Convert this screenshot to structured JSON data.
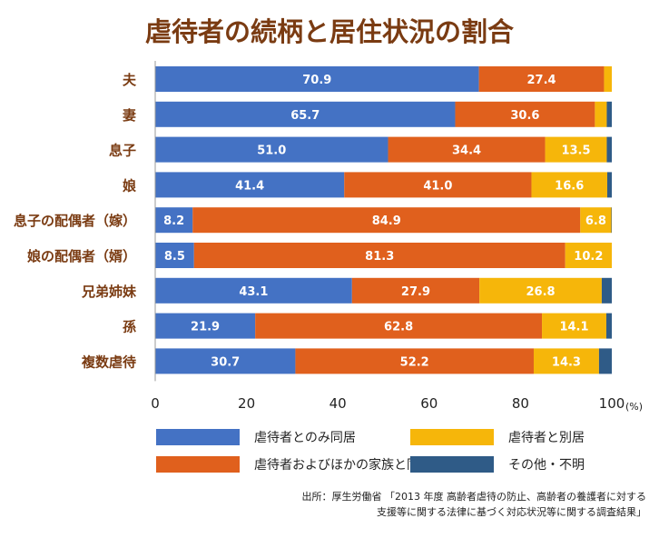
{
  "title": "虐待者の続柄と居住状況の割合",
  "source_lines": [
    "出所：厚生労働省 「2013 年度 高齢者虐待の防止、高齢者の養護者に対する",
    "支援等に関する法律に基づく対応状況等に関する調査結果」"
  ],
  "colors": {
    "title": "#7a3b12",
    "category_label": "#7a3b12",
    "series": [
      "#4472c4",
      "#e0601d",
      "#f6b60a",
      "#2f5b87"
    ]
  },
  "chart_data": {
    "type": "bar",
    "orientation": "horizontal",
    "stacked": true,
    "unit": "(%)",
    "xlim": [
      0,
      100
    ],
    "x_ticks": [
      0,
      20,
      40,
      60,
      80,
      100
    ],
    "legend_position": "bottom",
    "categories": [
      "夫",
      "妻",
      "息子",
      "娘",
      "息子の配偶者（嫁）",
      "娘の配偶者（婿）",
      "兄弟姉妹",
      "孫",
      "複数虐待"
    ],
    "series": [
      {
        "name": "虐待者とのみ同居",
        "values": [
          70.9,
          65.7,
          51.0,
          41.4,
          8.2,
          8.5,
          43.1,
          21.9,
          30.7
        ]
      },
      {
        "name": "虐待者およびほかの家族と同居",
        "values": [
          27.4,
          30.6,
          34.4,
          41.0,
          84.9,
          81.3,
          27.9,
          62.8,
          52.2
        ]
      },
      {
        "name": "虐待者と別居",
        "values": [
          1.7,
          2.6,
          13.5,
          16.6,
          6.8,
          10.2,
          26.8,
          14.1,
          14.3
        ]
      },
      {
        "name": "その他・不明",
        "values": [
          0.0,
          1.1,
          1.1,
          1.0,
          0.1,
          0.0,
          2.2,
          1.2,
          2.8
        ]
      }
    ],
    "data_labels": [
      [
        "70.9",
        "27.4",
        "",
        ""
      ],
      [
        "65.7",
        "30.6",
        "",
        ""
      ],
      [
        "51.0",
        "34.4",
        "13.5",
        ""
      ],
      [
        "41.4",
        "41.0",
        "16.6",
        ""
      ],
      [
        "8.2",
        "84.9",
        "6.8",
        ""
      ],
      [
        "8.5",
        "81.3",
        "10.2",
        ""
      ],
      [
        "43.1",
        "27.9",
        "26.8",
        ""
      ],
      [
        "21.9",
        "62.8",
        "14.1",
        ""
      ],
      [
        "30.7",
        "52.2",
        "14.3",
        ""
      ]
    ]
  }
}
